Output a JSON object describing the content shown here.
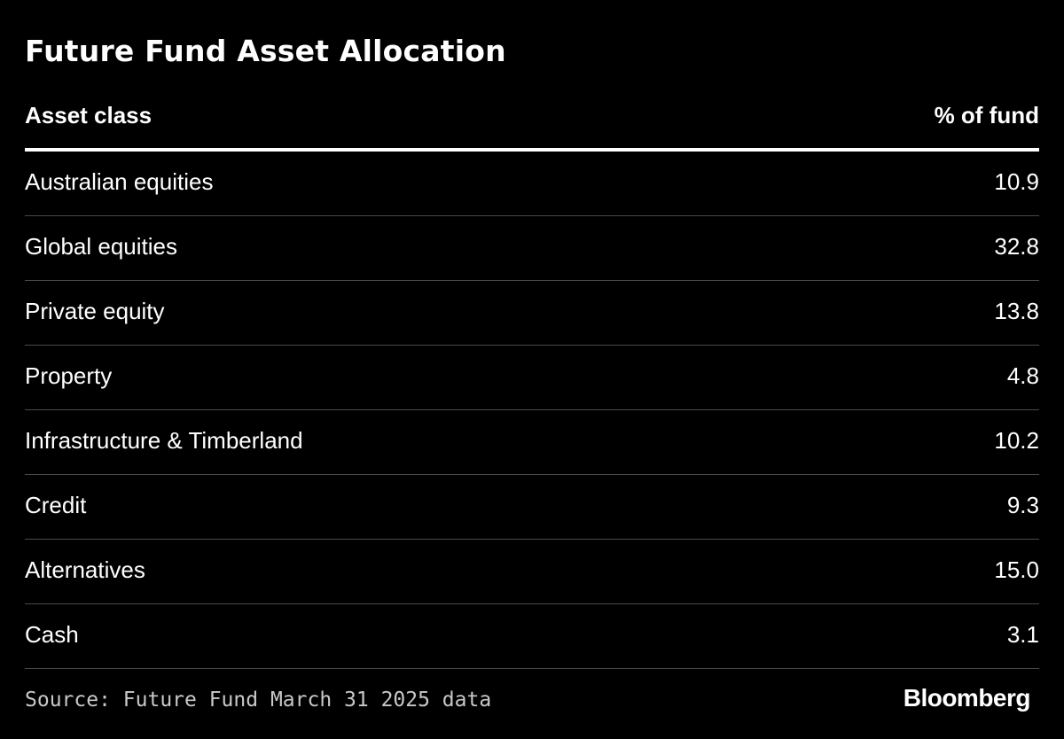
{
  "title": "Future Fund Asset Allocation",
  "source": "Source: Future Fund March 31 2025 data",
  "brand": "Bloomberg",
  "colors": {
    "background": "#000000",
    "text": "#ffffff",
    "divider": "#4a4a4a",
    "source_text": "#c8c8c8"
  },
  "chart_data": {
    "type": "table",
    "title": "Future Fund Asset Allocation",
    "columns": [
      "Asset class",
      "% of fund"
    ],
    "rows": [
      {
        "label": "Australian equities",
        "value": "10.9"
      },
      {
        "label": "Global equities",
        "value": "32.8"
      },
      {
        "label": "Private equity",
        "value": "13.8"
      },
      {
        "label": "Property",
        "value": "4.8"
      },
      {
        "label": "Infrastructure & Timberland",
        "value": "10.2"
      },
      {
        "label": "Credit",
        "value": "9.3"
      },
      {
        "label": "Alternatives",
        "value": "15.0"
      },
      {
        "label": "Cash",
        "value": "3.1"
      }
    ]
  }
}
